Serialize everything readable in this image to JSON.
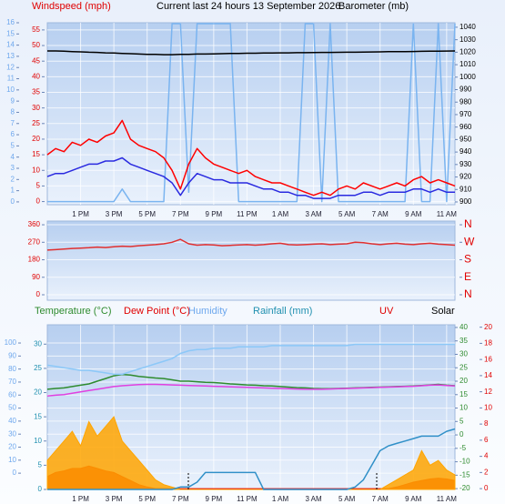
{
  "chart_data": [
    {
      "type": "line",
      "title": "Current last 24 hours 13 September 2026",
      "y_label": "Windspeed (mph)",
      "y2_label": "Barometer (mb)",
      "categories": [
        null,
        null,
        null,
        null,
        "1 PM",
        null,
        null,
        null,
        "3 PM",
        null,
        null,
        null,
        "5 PM",
        null,
        null,
        null,
        "7 PM",
        null,
        null,
        null,
        "9 PM",
        null,
        null,
        null,
        "11 PM",
        null,
        null,
        null,
        "1 AM",
        null,
        null,
        null,
        "3 AM",
        null,
        null,
        null,
        "5 AM",
        null,
        null,
        null,
        "7 AM",
        null,
        null,
        null,
        "9 AM",
        null,
        null,
        null,
        "11 AM",
        null
      ],
      "ylim": [
        -1,
        57.3
      ],
      "yticks": [
        0,
        5,
        10,
        15,
        20,
        25,
        30,
        35,
        40,
        45,
        50,
        55
      ],
      "y2lim": [
        897.8,
        1043.6
      ],
      "y2ticks": [
        900,
        910,
        920,
        930,
        940,
        950,
        960,
        970,
        980,
        990,
        1000,
        1010,
        1020,
        1030,
        1040
      ],
      "y3lim": [
        -0.25,
        16
      ],
      "y3ticks": [
        0,
        1,
        2,
        3,
        4,
        5,
        6,
        7,
        8,
        9,
        10,
        11,
        12,
        13,
        14,
        15,
        16
      ],
      "grid": true,
      "series": [
        {
          "color": "#7ab4f0",
          "values": [
            0,
            0,
            0,
            0,
            0,
            0,
            0,
            0,
            0,
            4,
            0,
            0,
            0,
            0,
            0,
            57,
            57,
            3,
            57,
            57,
            57,
            57,
            57,
            0,
            0,
            0,
            0,
            0,
            0,
            0,
            0,
            57,
            57,
            0,
            57,
            0,
            0,
            0,
            0,
            0,
            0,
            0,
            0,
            0,
            57,
            0,
            0,
            57,
            0,
            57
          ]
        },
        {
          "color": "#ff0000",
          "values": [
            15,
            17,
            16,
            19,
            18,
            20,
            19,
            21,
            22,
            26,
            20,
            18,
            17,
            16,
            14,
            10,
            4,
            12,
            17,
            14,
            12,
            11,
            10,
            9,
            10,
            8,
            7,
            6,
            6,
            5,
            4,
            3,
            2,
            3,
            2,
            4,
            5,
            4,
            6,
            5,
            4,
            5,
            6,
            5,
            7,
            8,
            6,
            7,
            6,
            5
          ]
        },
        {
          "color": "#2a2ae0",
          "values": [
            8,
            9,
            9,
            10,
            11,
            12,
            12,
            13,
            13,
            14,
            12,
            11,
            10,
            9,
            8,
            6,
            2,
            6,
            9,
            8,
            7,
            7,
            6,
            6,
            6,
            5,
            4,
            4,
            3,
            3,
            2,
            2,
            1,
            1,
            1,
            2,
            2,
            2,
            3,
            3,
            2,
            3,
            3,
            3,
            4,
            4,
            3,
            4,
            3,
            3
          ]
        },
        {
          "color": "#000000",
          "axis": "y2",
          "values": [
            1021,
            1021,
            1020.8,
            1020.5,
            1020.3,
            1020,
            1019.8,
            1019.5,
            1019.3,
            1019,
            1018.8,
            1018.5,
            1018.3,
            1018.2,
            1018,
            1018,
            1018.2,
            1018.3,
            1018.5,
            1018.5,
            1018.6,
            1018.8,
            1019,
            1019,
            1019.2,
            1019.2,
            1019.3,
            1019.4,
            1019.5,
            1019.5,
            1019.6,
            1019.6,
            1019.7,
            1019.8,
            1019.8,
            1019.9,
            1020,
            1020,
            1020.1,
            1020.2,
            1020.3,
            1020.4,
            1020.5,
            1020.5,
            1020.6,
            1020.7,
            1020.8,
            1020.8,
            1020.9,
            1021
          ]
        }
      ]
    },
    {
      "type": "line",
      "ylim": [
        -28,
        379
      ],
      "yticks": [
        0,
        90,
        180,
        270,
        360
      ],
      "y2lim": [
        -28,
        379
      ],
      "y2ticks": [
        {
          "value": 0,
          "label": "N"
        },
        {
          "value": 90,
          "label": "E"
        },
        {
          "value": 180,
          "label": "S"
        },
        {
          "value": 270,
          "label": "W"
        },
        {
          "value": 360,
          "label": "N"
        }
      ],
      "grid": true,
      "series": [
        {
          "color": "#e03030",
          "values": [
            230,
            232,
            235,
            238,
            240,
            242,
            245,
            243,
            247,
            250,
            248,
            252,
            255,
            258,
            262,
            270,
            285,
            262,
            255,
            258,
            256,
            252,
            254,
            256,
            258,
            255,
            258,
            262,
            265,
            258,
            256,
            258,
            260,
            262,
            258,
            260,
            262,
            270,
            268,
            262,
            258,
            262,
            265,
            260,
            258,
            262,
            265,
            260,
            258,
            255
          ]
        }
      ]
    },
    {
      "type": "line",
      "categories": [
        null,
        null,
        null,
        null,
        "1 PM",
        null,
        null,
        null,
        "3 PM",
        null,
        null,
        null,
        "5 PM",
        null,
        null,
        null,
        "7 PM",
        null,
        null,
        null,
        "9 PM",
        null,
        null,
        null,
        "11 PM",
        null,
        null,
        null,
        "1 AM",
        null,
        null,
        null,
        "3 AM",
        null,
        null,
        null,
        "5 AM",
        null,
        null,
        null,
        "7 AM",
        null,
        null,
        null,
        "9 AM",
        null,
        null,
        null,
        "11 AM",
        null
      ],
      "ylim": [
        -12.5,
        114
      ],
      "yticks": [
        0,
        10,
        20,
        30,
        40,
        50,
        60,
        70,
        80,
        90,
        100
      ],
      "y2lim": [
        0,
        34
      ],
      "y2ticks": [
        0,
        5,
        10,
        15,
        20,
        25,
        30
      ],
      "y3lim": [
        -20.3,
        41
      ],
      "y3ticks": [
        -20,
        -15,
        -10,
        -5,
        0,
        5,
        10,
        15,
        20,
        25,
        30,
        35,
        40
      ],
      "y4lim": [
        -0.1,
        20.3
      ],
      "y4ticks": [
        0,
        2,
        4,
        6,
        8,
        10,
        12,
        14,
        16,
        18,
        20
      ],
      "grid": true,
      "series": [
        {
          "name": "Temperature (°C)",
          "color": "#2e8b2e",
          "axis": "y3",
          "values": [
            17,
            17.3,
            17.5,
            18,
            18.5,
            19,
            20,
            21,
            22,
            22.5,
            22.3,
            21.8,
            21.5,
            21.2,
            21,
            20.5,
            20,
            20,
            19.8,
            19.6,
            19.5,
            19.3,
            19,
            18.8,
            18.6,
            18.5,
            18.3,
            18.2,
            18,
            17.8,
            17.6,
            17.5,
            17.3,
            17.2,
            17.2,
            17.3,
            17.4,
            17.5,
            17.6,
            17.7,
            17.8,
            17.9,
            18,
            18.1,
            18.2,
            18.4,
            18.6,
            18.8,
            18.5,
            18.3
          ]
        },
        {
          "name": "Dew Point (°C)",
          "color": "#e040e0",
          "axis": "y3",
          "values": [
            14.5,
            14.8,
            15,
            15.5,
            16,
            16.5,
            17,
            17.5,
            18,
            18.3,
            18.5,
            18.7,
            18.8,
            18.8,
            18.7,
            18.6,
            18.5,
            18.4,
            18.3,
            18.2,
            18.1,
            18,
            17.9,
            17.8,
            17.7,
            17.6,
            17.5,
            17.4,
            17.3,
            17.2,
            17.1,
            17,
            17,
            17,
            17.1,
            17.2,
            17.3,
            17.4,
            17.5,
            17.6,
            17.7,
            17.8,
            17.9,
            18,
            18.1,
            18.3,
            18.5,
            18.6,
            18.4,
            18.2
          ]
        },
        {
          "name": "Humidity",
          "color": "#8cc8f8",
          "axis": "y",
          "values": [
            83,
            82,
            81,
            80,
            79,
            79,
            78,
            77,
            76,
            76,
            78,
            80,
            82,
            84,
            86,
            88,
            92,
            94,
            95,
            95,
            96,
            96,
            96,
            97,
            97,
            97,
            97,
            98,
            98,
            98,
            98,
            98,
            98,
            98,
            98,
            98,
            98,
            99,
            99,
            99,
            99,
            99,
            99,
            99,
            99,
            99,
            99,
            99,
            99,
            99
          ]
        },
        {
          "name": "Rainfall (mm)",
          "color": "#3090c8",
          "axis": "y2",
          "values": [
            0,
            0,
            0,
            0,
            0,
            0,
            0,
            0,
            0,
            0,
            0,
            0,
            0,
            0,
            0,
            0,
            0.5,
            0.5,
            1.5,
            3.5,
            3.5,
            3.5,
            3.5,
            3.5,
            3.5,
            3.5,
            0,
            0,
            0,
            0,
            0,
            0,
            0,
            0,
            0,
            0,
            0,
            0.5,
            2,
            5,
            8,
            9,
            9.5,
            10,
            10.5,
            11,
            11,
            11,
            12,
            12.5
          ]
        },
        {
          "name": "UV",
          "color": "#e00000",
          "axis": "y4",
          "type": "area",
          "values": [
            1.5,
            2,
            2.2,
            2.5,
            2.5,
            2.8,
            2.5,
            2.2,
            2,
            1.5,
            1,
            0.5,
            0.2,
            0,
            0,
            0,
            0,
            0,
            0,
            0,
            0,
            0,
            0,
            0,
            0,
            0,
            0,
            0,
            0,
            0,
            0,
            0,
            0,
            0,
            0,
            0,
            0,
            0,
            0,
            0,
            0,
            0,
            0.2,
            0.5,
            0.8,
            1,
            1.2,
            1.3,
            1.2,
            1
          ]
        },
        {
          "name": "Solar",
          "color": "#ffa500",
          "axis": "y2",
          "type": "area",
          "values": [
            6,
            8,
            10,
            12,
            9,
            14,
            11,
            13,
            15,
            10,
            8,
            6,
            4,
            2,
            1,
            0.5,
            0,
            0,
            0,
            0,
            0,
            0,
            0,
            0,
            0,
            0,
            0,
            0,
            0,
            0,
            0,
            0,
            0,
            0,
            0,
            0,
            0,
            0,
            0,
            0,
            0,
            1,
            2,
            3,
            4,
            8,
            5,
            6,
            4,
            3
          ]
        }
      ]
    }
  ]
}
